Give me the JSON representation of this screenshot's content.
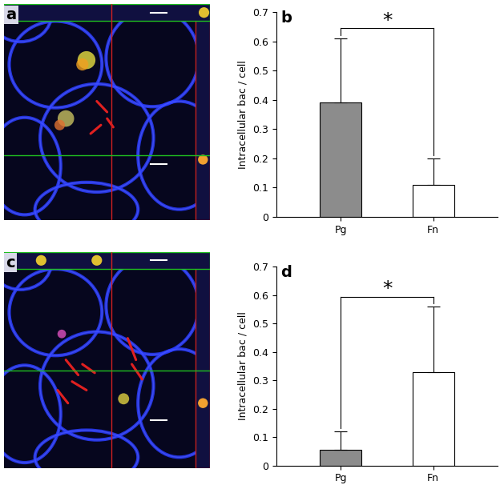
{
  "chart_data": [
    {
      "type": "bar",
      "panel": "b",
      "categories": [
        "Pg",
        "Fn"
      ],
      "values": [
        0.39,
        0.11
      ],
      "errors": [
        0.22,
        0.09
      ],
      "colors": [
        "#8c8c8c",
        "#ffffff"
      ],
      "y_label": "Intracellular bac / cell",
      "ylim": [
        0,
        0.7
      ],
      "yticks": [
        0,
        0.1,
        0.2,
        0.3,
        0.4,
        0.5,
        0.6,
        0.7
      ],
      "significance": "*"
    },
    {
      "type": "bar",
      "panel": "d",
      "categories": [
        "Pg",
        "Fn"
      ],
      "values": [
        0.055,
        0.33
      ],
      "errors": [
        0.065,
        0.23
      ],
      "colors": [
        "#8c8c8c",
        "#ffffff"
      ],
      "y_label": "Intracellular bac / cell",
      "ylim": [
        0,
        0.7
      ],
      "yticks": [
        0,
        0.1,
        0.2,
        0.3,
        0.4,
        0.5,
        0.6,
        0.7
      ],
      "significance": "*"
    }
  ],
  "images": [
    {
      "panel": "a"
    },
    {
      "panel": "c"
    }
  ]
}
